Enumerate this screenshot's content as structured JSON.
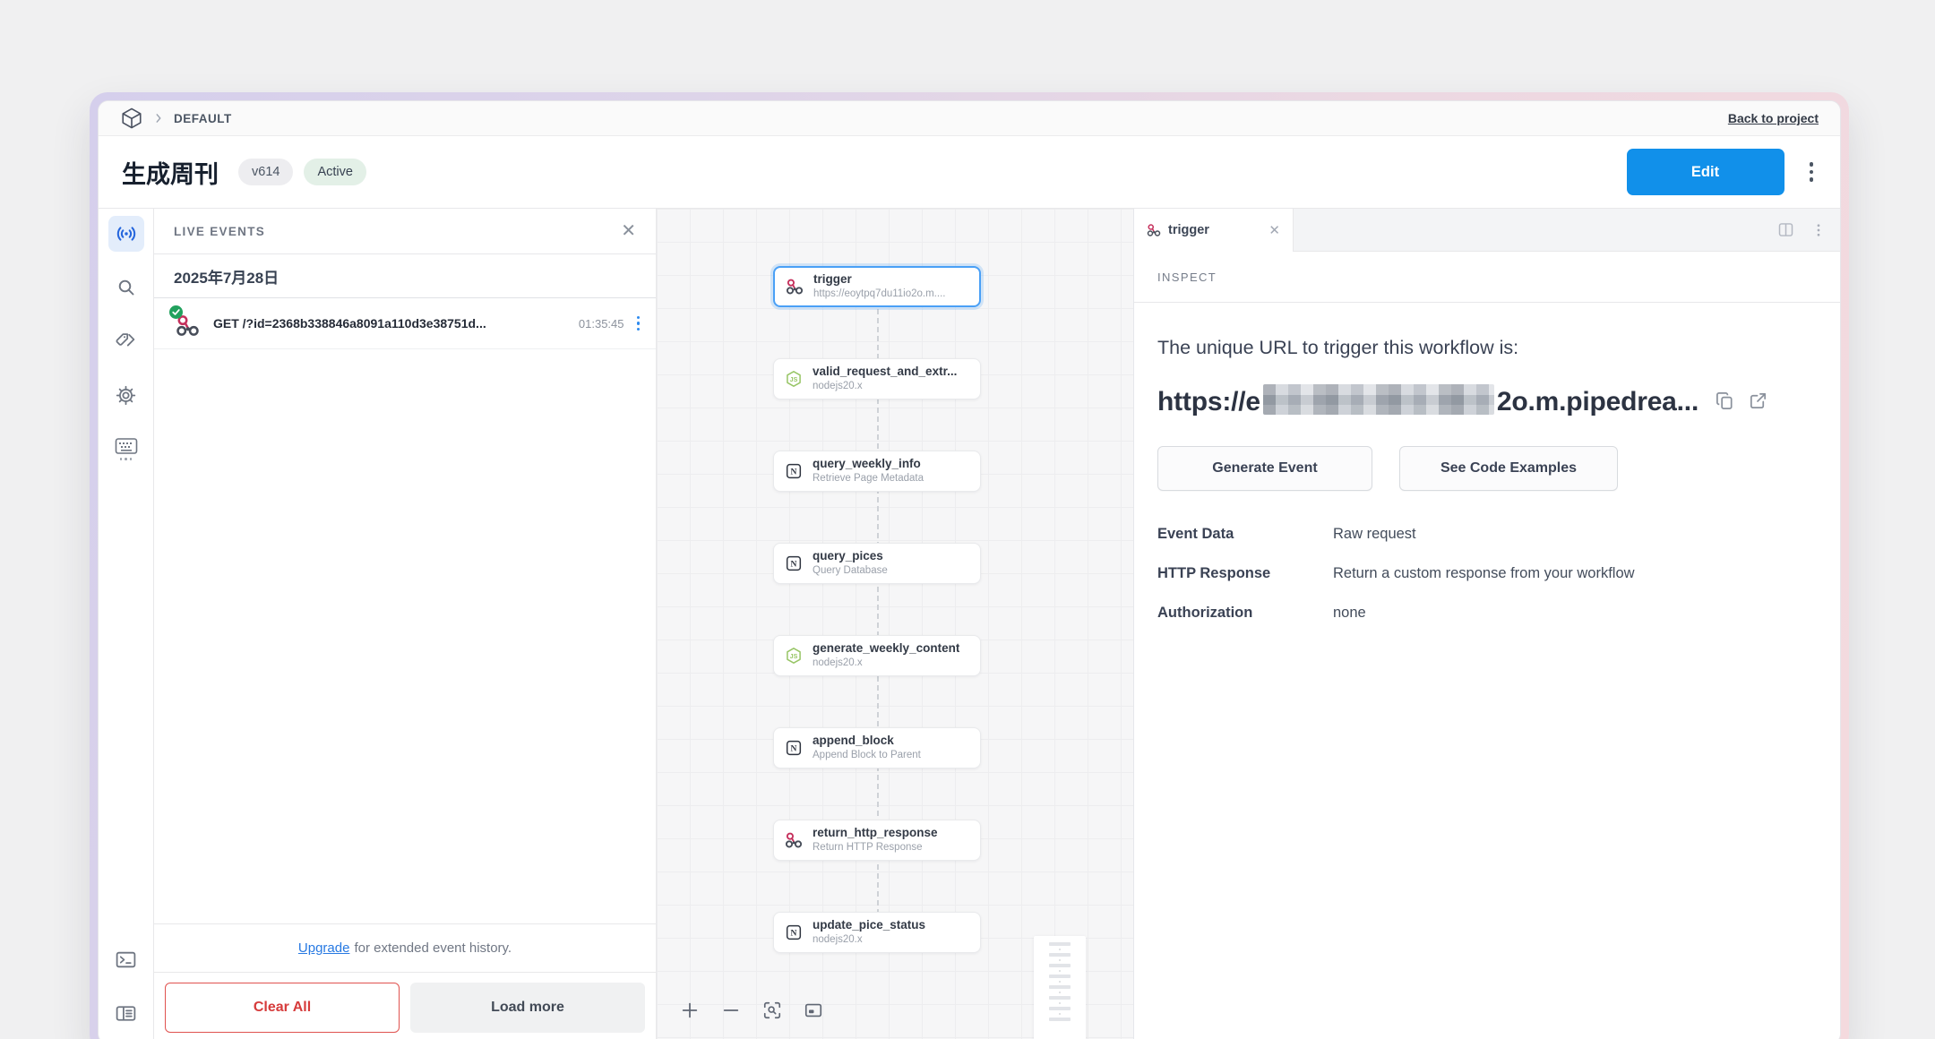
{
  "breadcrumb": {
    "project": "DEFAULT",
    "back_link": "Back to project"
  },
  "header": {
    "title": "生成周刊",
    "version_badge": "v614",
    "status_badge": "Active",
    "edit_label": "Edit"
  },
  "live_events": {
    "panel_title": "LIVE EVENTS",
    "date_header": "2025年7月28日",
    "events": [
      {
        "summary": "GET /?id=2368b338846a8091a110d3e38751d...",
        "time": "01:35:45",
        "status": "success"
      }
    ],
    "upgrade_link": "Upgrade",
    "upgrade_text": "for extended event history.",
    "clear_all_label": "Clear All",
    "load_more_label": "Load more"
  },
  "workflow": {
    "steps": [
      {
        "name": "trigger",
        "subtitle": "https://eoytpq7du11io2o.m....",
        "icon": "webhook",
        "selected": true
      },
      {
        "name": "valid_request_and_extr...",
        "subtitle": "nodejs20.x",
        "icon": "nodejs"
      },
      {
        "name": "query_weekly_info",
        "subtitle": "Retrieve Page Metadata",
        "icon": "notion"
      },
      {
        "name": "query_pices",
        "subtitle": "Query Database",
        "icon": "notion"
      },
      {
        "name": "generate_weekly_content",
        "subtitle": "nodejs20.x",
        "icon": "nodejs"
      },
      {
        "name": "append_block",
        "subtitle": "Append Block to Parent",
        "icon": "notion"
      },
      {
        "name": "return_http_response",
        "subtitle": "Return HTTP Response",
        "icon": "webhook"
      },
      {
        "name": "update_pice_status",
        "subtitle": "nodejs20.x",
        "icon": "notion"
      }
    ]
  },
  "inspector": {
    "tab_label": "trigger",
    "section_label": "INSPECT",
    "heading": "The unique URL to trigger this workflow is:",
    "url_prefix": "https://e",
    "url_redacted": "[redacted]",
    "url_suffix": "2o.m.pipedrea...",
    "generate_event_label": "Generate Event",
    "see_code_examples_label": "See Code Examples",
    "rows": [
      {
        "label": "Event Data",
        "value": "Raw request"
      },
      {
        "label": "HTTP Response",
        "value": "Return a custom response from your workflow"
      },
      {
        "label": "Authorization",
        "value": "none"
      }
    ]
  },
  "colors": {
    "accent_blue": "#1190ea",
    "selected_border": "#4aa0f6",
    "webhook_red": "#c5305c",
    "nodejs_green": "#97c565",
    "danger_red": "#d63b3b",
    "success_green": "#21a15d",
    "active_badge_bg": "#e3f0e7"
  }
}
